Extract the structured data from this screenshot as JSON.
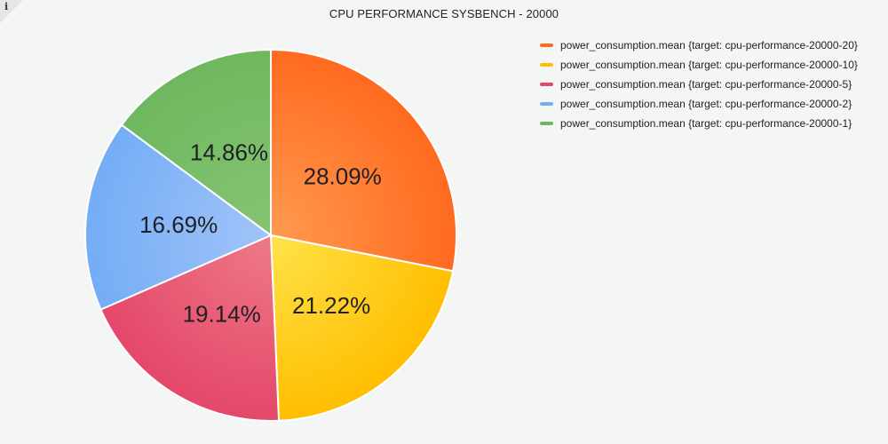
{
  "info": {
    "icon": "info-icon",
    "glyph": "i"
  },
  "chart_data": {
    "type": "pie",
    "title": "CPU PERFORMANCE SYSBENCH - 20000",
    "legend_position": "top-right",
    "unit": "%",
    "slices": [
      {
        "name": "power_consumption.mean {target: cpu-performance-20000-20}",
        "value": 28.09,
        "label": "28.09%",
        "color": "#ff6a1f",
        "color_light": "#ff9a50"
      },
      {
        "name": "power_consumption.mean {target: cpu-performance-20000-10}",
        "value": 21.22,
        "label": "21.22%",
        "color": "#ffbe00",
        "color_light": "#ffe34a"
      },
      {
        "name": "power_consumption.mean {target: cpu-performance-20000-5}",
        "value": 19.14,
        "label": "19.14%",
        "color": "#e4476a",
        "color_light": "#ee7a86"
      },
      {
        "name": "power_consumption.mean {target: cpu-performance-20000-2}",
        "value": 16.69,
        "label": "16.69%",
        "color": "#73adf6",
        "color_light": "#a2c4f8"
      },
      {
        "name": "power_consumption.mean {target: cpu-performance-20000-1}",
        "value": 14.86,
        "label": "14.86%",
        "color": "#6fb85f",
        "color_light": "#86c473"
      }
    ]
  }
}
